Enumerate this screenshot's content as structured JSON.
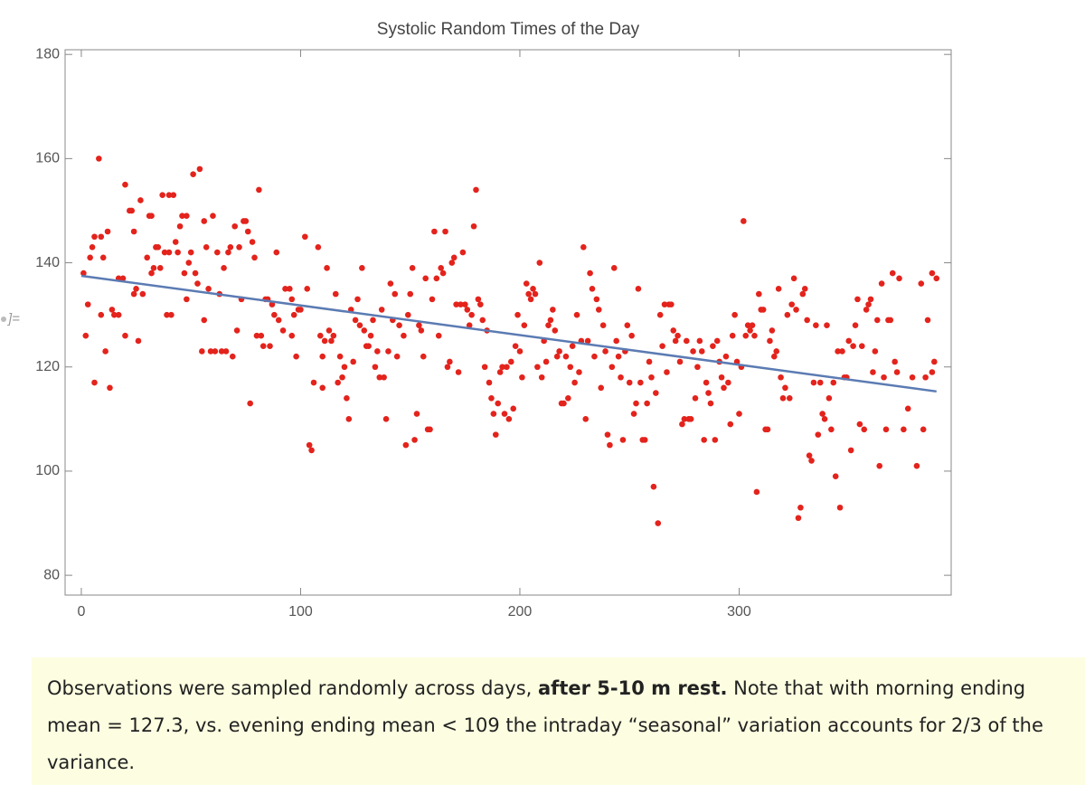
{
  "out_label": "]=",
  "chart_data": {
    "type": "scatter",
    "title": "Systolic Random Times of the Day",
    "color": "#e3231c",
    "x": [
      1,
      2,
      3,
      4,
      5,
      6,
      6,
      8,
      9,
      9,
      10,
      11,
      12,
      13,
      14,
      15,
      17,
      17,
      19,
      20,
      20,
      22,
      23,
      24,
      24,
      25,
      26,
      27,
      28,
      30,
      31,
      32,
      32,
      33,
      34,
      35,
      36,
      37,
      38,
      39,
      40,
      40,
      41,
      42,
      43,
      44,
      45,
      46,
      47,
      48,
      48,
      49,
      50,
      51,
      52,
      53,
      54,
      55,
      56,
      56,
      57,
      58,
      59,
      60,
      61,
      62,
      63,
      64,
      65,
      66,
      67,
      68,
      69,
      70,
      71,
      72,
      73,
      74,
      75,
      76,
      77,
      78,
      79,
      80,
      81,
      82,
      83,
      84,
      85,
      86,
      87,
      88,
      89,
      90,
      92,
      93,
      95,
      96,
      96,
      97,
      98,
      99,
      100,
      102,
      103,
      104,
      105,
      106,
      108,
      109,
      110,
      110,
      111,
      112,
      113,
      114,
      115,
      116,
      117,
      118,
      119,
      120,
      121,
      122,
      123,
      124,
      125,
      126,
      127,
      128,
      129,
      130,
      131,
      132,
      133,
      134,
      135,
      136,
      137,
      138,
      139,
      140,
      141,
      142,
      143,
      144,
      145,
      147,
      148,
      149,
      150,
      151,
      152,
      153,
      154,
      155,
      156,
      157,
      158,
      159,
      160,
      161,
      162,
      163,
      164,
      165,
      166,
      167,
      168,
      169,
      170,
      171,
      172,
      173,
      174,
      175,
      176,
      177,
      178,
      179,
      180,
      181,
      182,
      183,
      184,
      185,
      186,
      187,
      188,
      189,
      190,
      191,
      192,
      193,
      194,
      195,
      196,
      197,
      198,
      199,
      200,
      201,
      202,
      203,
      204,
      205,
      206,
      207,
      208,
      209,
      210,
      211,
      212,
      213,
      214,
      215,
      216,
      217,
      218,
      219,
      220,
      221,
      222,
      223,
      224,
      225,
      226,
      227,
      228,
      229,
      230,
      231,
      232,
      233,
      234,
      235,
      236,
      237,
      238,
      239,
      240,
      241,
      242,
      243,
      244,
      245,
      246,
      247,
      248,
      249,
      250,
      251,
      252,
      253,
      254,
      255,
      256,
      257,
      258,
      259,
      260,
      261,
      262,
      263,
      264,
      265,
      266,
      267,
      268,
      269,
      270,
      271,
      272,
      273,
      274,
      275,
      276,
      277,
      278,
      279,
      280,
      281,
      282,
      283,
      284,
      285,
      286,
      287,
      288,
      289,
      290,
      291,
      292,
      293,
      294,
      295,
      296,
      297,
      298,
      299,
      300,
      301,
      302,
      303,
      304,
      305,
      306,
      307,
      308,
      309,
      310,
      311,
      312,
      313,
      314,
      315,
      316,
      317,
      318,
      319,
      320,
      321,
      322,
      323,
      324,
      325,
      326,
      327,
      328,
      329,
      330,
      331,
      332,
      333,
      334,
      335,
      336,
      337,
      338,
      339,
      340,
      341,
      342,
      343,
      344,
      345,
      346,
      347,
      348,
      349,
      350,
      351,
      352,
      353,
      354,
      355,
      356,
      357,
      358,
      359,
      360,
      361,
      362,
      363,
      364,
      365,
      366,
      367,
      368,
      369,
      370,
      371,
      372,
      373,
      375,
      377,
      379,
      381,
      383,
      385,
      386,
      388,
      389,
      390,
      388,
      384
    ],
    "values": [
      138,
      126,
      132,
      141,
      143,
      145,
      117,
      160,
      145,
      130,
      141,
      123,
      146,
      116,
      131,
      130,
      137,
      130,
      137,
      155,
      126,
      150,
      150,
      146,
      134,
      135,
      125,
      152,
      134,
      141,
      149,
      138,
      149,
      139,
      143,
      143,
      139,
      153,
      142,
      130,
      153,
      142,
      130,
      153,
      144,
      142,
      147,
      149,
      138,
      133,
      149,
      140,
      142,
      157,
      138,
      136,
      158,
      123,
      148,
      129,
      143,
      135,
      123,
      149,
      123,
      142,
      134,
      123,
      139,
      123,
      142,
      143,
      122,
      147,
      127,
      143,
      133,
      148,
      148,
      146,
      113,
      144,
      141,
      126,
      154,
      126,
      124,
      133,
      133,
      124,
      132,
      130,
      142,
      129,
      127,
      135,
      135,
      133,
      126,
      130,
      122,
      131,
      131,
      145,
      135,
      105,
      104,
      117,
      143,
      126,
      116,
      122,
      125,
      139,
      127,
      125,
      126,
      134,
      117,
      122,
      118,
      120,
      114,
      110,
      131,
      121,
      129,
      133,
      128,
      139,
      127,
      124,
      124,
      126,
      129,
      120,
      123,
      118,
      131,
      118,
      110,
      123,
      136,
      129,
      134,
      122,
      128,
      126,
      105,
      130,
      134,
      139,
      106,
      111,
      128,
      127,
      122,
      137,
      108,
      108,
      133,
      146,
      137,
      126,
      139,
      138,
      146,
      120,
      121,
      140,
      141,
      132,
      119,
      132,
      142,
      132,
      131,
      128,
      130,
      147,
      154,
      133,
      132,
      129,
      120,
      127,
      117,
      114,
      111,
      107,
      113,
      119,
      120,
      111,
      120,
      110,
      121,
      112,
      124,
      130,
      123,
      118,
      128,
      136,
      134,
      133,
      135,
      134,
      120,
      140,
      118,
      125,
      121,
      128,
      129,
      131,
      127,
      122,
      123,
      113,
      113,
      122,
      114,
      120,
      124,
      117,
      130,
      119,
      125,
      143,
      110,
      125,
      138,
      135,
      122,
      133,
      131,
      116,
      128,
      123,
      107,
      105,
      120,
      139,
      125,
      122,
      118,
      106,
      123,
      128,
      117,
      126,
      111,
      113,
      135,
      117,
      106,
      106,
      113,
      121,
      118,
      97,
      115,
      90,
      130,
      124,
      132,
      119,
      132,
      132,
      127,
      125,
      126,
      121,
      109,
      110,
      125,
      110,
      110,
      123,
      114,
      120,
      125,
      123,
      106,
      117,
      115,
      113,
      124,
      106,
      125,
      121,
      118,
      116,
      122,
      117,
      109,
      126,
      130,
      121,
      111,
      120,
      148,
      126,
      128,
      127,
      128,
      126,
      96,
      134,
      131,
      131,
      108,
      108,
      125,
      127,
      122,
      123,
      135,
      118,
      114,
      116,
      130,
      114,
      132,
      137,
      131,
      91,
      93,
      134,
      135,
      129,
      103,
      102,
      117,
      128,
      107,
      117,
      111,
      110,
      128,
      114,
      108,
      117,
      99,
      123,
      93,
      123,
      118,
      118,
      125,
      104,
      124,
      128,
      133,
      109,
      124,
      108,
      131,
      132,
      133,
      119,
      123,
      129,
      101,
      136,
      118,
      108,
      129,
      129,
      138,
      121,
      119,
      137,
      108,
      112,
      118,
      101,
      136,
      118,
      129,
      138,
      121,
      137,
      119,
      108
    ],
    "fit_line": {
      "color": "#5b7bb3",
      "x": [
        0,
        390
      ],
      "values": [
        137.5,
        115.3
      ]
    },
    "xlim": [
      -7.4,
      396.7
    ],
    "ylim": [
      76.2,
      180.9
    ],
    "xticks": [
      0,
      100,
      200,
      300
    ],
    "yticks": [
      80,
      100,
      120,
      140,
      160,
      180
    ]
  },
  "caption": {
    "before": "Observations were sampled randomly across days, ",
    "bold": "after 5-10 m rest.",
    "after": " Note that with morning ending mean = 127.3, vs. evening ending mean < 109 the intraday “seasonal” variation accounts for 2/3 of  the variance."
  }
}
